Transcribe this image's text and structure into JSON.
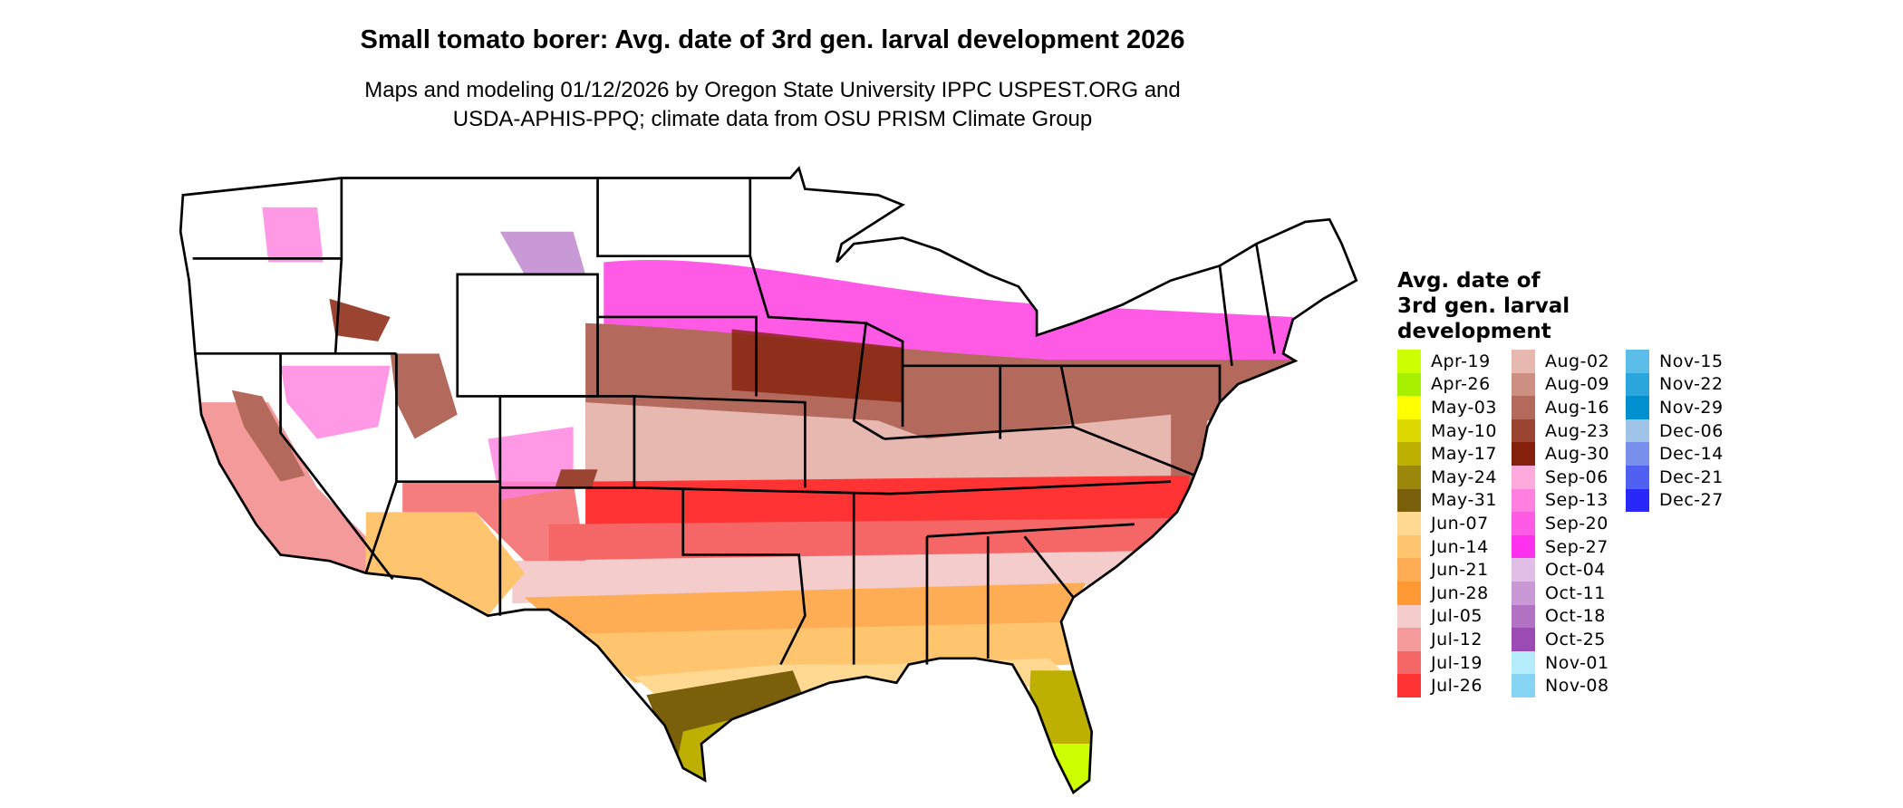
{
  "title": "Small tomato borer: Avg. date of 3rd gen. larval development 2026",
  "subtitle_line1": "Maps and modeling 01/12/2026 by Oregon State University IPPC USPEST.ORG and",
  "subtitle_line2": "USDA-APHIS-PPQ; climate data from OSU PRISM Climate Group",
  "legend": {
    "title_lines": [
      "Avg. date of",
      "3rd gen. larval",
      "development"
    ],
    "columns": [
      [
        {
          "label": "Apr-19",
          "color": "#ccff00"
        },
        {
          "label": "Apr-26",
          "color": "#a6f000"
        },
        {
          "label": "May-03",
          "color": "#ffff00"
        },
        {
          "label": "May-10",
          "color": "#dcd800"
        },
        {
          "label": "May-17",
          "color": "#bdb000"
        },
        {
          "label": "May-24",
          "color": "#9b870a"
        },
        {
          "label": "May-31",
          "color": "#7a600a"
        },
        {
          "label": "Jun-07",
          "color": "#ffd991"
        },
        {
          "label": "Jun-14",
          "color": "#ffc46e"
        },
        {
          "label": "Jun-21",
          "color": "#ffad55"
        },
        {
          "label": "Jun-28",
          "color": "#ff9933"
        },
        {
          "label": "Jul-05",
          "color": "#f5cccc"
        },
        {
          "label": "Jul-12",
          "color": "#f59a9a"
        },
        {
          "label": "Jul-19",
          "color": "#f56666"
        },
        {
          "label": "Jul-26",
          "color": "#ff3333"
        }
      ],
      [
        {
          "label": "Aug-02",
          "color": "#e6b8b0"
        },
        {
          "label": "Aug-09",
          "color": "#cc8f82"
        },
        {
          "label": "Aug-16",
          "color": "#b36a5c"
        },
        {
          "label": "Aug-23",
          "color": "#9c4432"
        },
        {
          "label": "Aug-30",
          "color": "#85200c"
        },
        {
          "label": "Sep-06",
          "color": "#ffaadd"
        },
        {
          "label": "Sep-13",
          "color": "#ff80e0"
        },
        {
          "label": "Sep-20",
          "color": "#ff5ae6"
        },
        {
          "label": "Sep-27",
          "color": "#ff30ee"
        },
        {
          "label": "Oct-04",
          "color": "#e0bee6"
        },
        {
          "label": "Oct-11",
          "color": "#c899d4"
        },
        {
          "label": "Oct-18",
          "color": "#b272c4"
        },
        {
          "label": "Oct-25",
          "color": "#9c4bb4"
        },
        {
          "label": "Nov-01",
          "color": "#b4ecfc"
        },
        {
          "label": "Nov-08",
          "color": "#85d5f2"
        }
      ],
      [
        {
          "label": "Nov-15",
          "color": "#5bbde8"
        },
        {
          "label": "Nov-22",
          "color": "#2aa6dc"
        },
        {
          "label": "Nov-29",
          "color": "#0090d0"
        },
        {
          "label": "Dec-06",
          "color": "#a0c4e8"
        },
        {
          "label": "Dec-14",
          "color": "#7890ec"
        },
        {
          "label": "Dec-21",
          "color": "#5060f0"
        },
        {
          "label": "Dec-27",
          "color": "#2828f8"
        }
      ]
    ]
  }
}
